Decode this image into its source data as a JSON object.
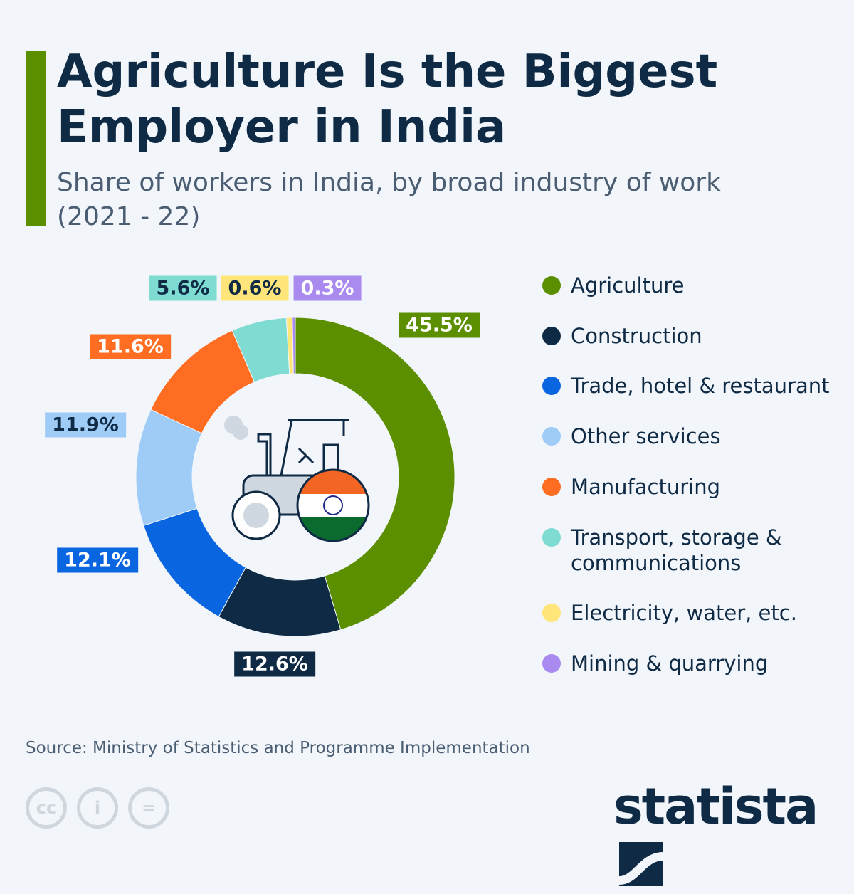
{
  "title": "Agriculture Is the Biggest Employer in India",
  "subtitle": "Share of workers in India, by broad industry of work (2021 - 22)",
  "source": "Source: Ministry of Statistics and Programme Implementation",
  "brand": "statista",
  "license_icons": [
    "cc-icon",
    "attribution-icon",
    "no-derivatives-icon"
  ],
  "license_text": [
    "cc",
    "i",
    "="
  ],
  "center_icon": "tractor-with-india-flag-icon",
  "chart_data": {
    "type": "pie",
    "donut": true,
    "categories": [
      "Agriculture",
      "Construction",
      "Trade, hotel & restaurant",
      "Other services",
      "Manufacturing",
      "Transport, storage & communications",
      "Electricity, water, etc.",
      "Mining & quarrying"
    ],
    "values": [
      45.5,
      12.6,
      12.1,
      11.9,
      11.6,
      5.6,
      0.6,
      0.3
    ],
    "labels": [
      "45.5%",
      "12.6%",
      "12.1%",
      "11.9%",
      "11.6%",
      "5.6%",
      "0.6%",
      "0.3%"
    ],
    "colors": [
      "#5b8f00",
      "#0f2a45",
      "#0a66e0",
      "#9fcbf7",
      "#ff6d22",
      "#7fdcd3",
      "#ffe57a",
      "#a98bf0"
    ],
    "legend_position": "right"
  }
}
